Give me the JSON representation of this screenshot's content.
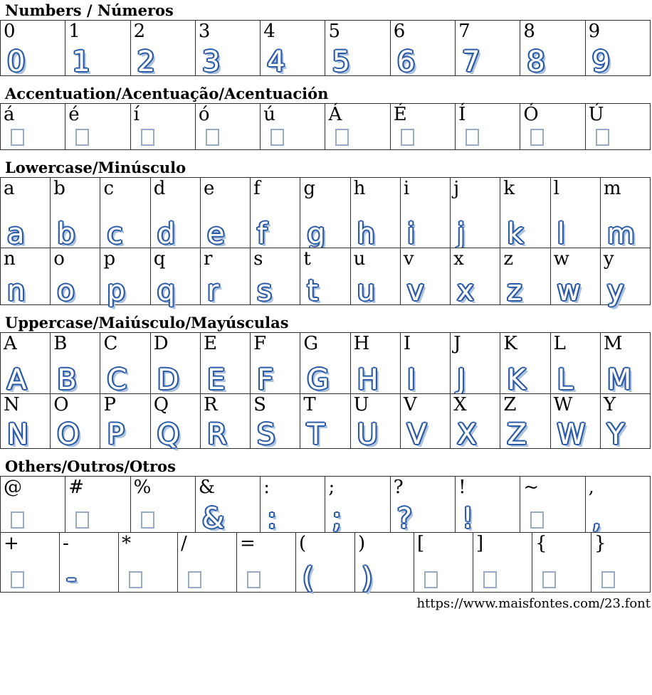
{
  "palette": {
    "glyph_outline_blue": "#2b5ba6",
    "glyph_shade_blue": "#aec3dd",
    "missing_box_border": "#97abc5",
    "grid_border": "#2f2f2f"
  },
  "footer": {
    "url": "https://www.maisfontes.com/23.font"
  },
  "sections": [
    {
      "title": "Numbers / Números",
      "rows": [
        [
          {
            "ch": "0",
            "present": true
          },
          {
            "ch": "1",
            "present": true
          },
          {
            "ch": "2",
            "present": true
          },
          {
            "ch": "3",
            "present": true
          },
          {
            "ch": "4",
            "present": true
          },
          {
            "ch": "5",
            "present": true
          },
          {
            "ch": "6",
            "present": true
          },
          {
            "ch": "7",
            "present": true
          },
          {
            "ch": "8",
            "present": true
          },
          {
            "ch": "9",
            "present": true
          }
        ]
      ]
    },
    {
      "title": "Accentuation/Acentuação/Acentuación",
      "rows": [
        [
          {
            "ch": "á",
            "present": false
          },
          {
            "ch": "é",
            "present": false
          },
          {
            "ch": "í",
            "present": false
          },
          {
            "ch": "ó",
            "present": false
          },
          {
            "ch": "ú",
            "present": false
          },
          {
            "ch": "Á",
            "present": false
          },
          {
            "ch": "É",
            "present": false
          },
          {
            "ch": "Í",
            "present": false
          },
          {
            "ch": "Ó",
            "present": false
          },
          {
            "ch": "Ú",
            "present": false
          }
        ]
      ]
    },
    {
      "title": "Lowercase/Minúsculo",
      "rows": [
        [
          {
            "ch": "a",
            "present": true
          },
          {
            "ch": "b",
            "present": true
          },
          {
            "ch": "c",
            "present": true
          },
          {
            "ch": "d",
            "present": true
          },
          {
            "ch": "e",
            "present": true
          },
          {
            "ch": "f",
            "present": true
          },
          {
            "ch": "g",
            "present": true
          },
          {
            "ch": "h",
            "present": true
          },
          {
            "ch": "i",
            "present": true
          },
          {
            "ch": "j",
            "present": true
          },
          {
            "ch": "k",
            "present": true
          },
          {
            "ch": "l",
            "present": true
          },
          {
            "ch": "m",
            "present": true
          }
        ],
        [
          {
            "ch": "n",
            "present": true
          },
          {
            "ch": "o",
            "present": true
          },
          {
            "ch": "p",
            "present": true
          },
          {
            "ch": "q",
            "present": true
          },
          {
            "ch": "r",
            "present": true
          },
          {
            "ch": "s",
            "present": true
          },
          {
            "ch": "t",
            "present": true
          },
          {
            "ch": "u",
            "present": true
          },
          {
            "ch": "v",
            "present": true
          },
          {
            "ch": "x",
            "present": true
          },
          {
            "ch": "z",
            "present": true
          },
          {
            "ch": "w",
            "present": true
          },
          {
            "ch": "y",
            "present": true
          }
        ]
      ]
    },
    {
      "title": "Uppercase/Maiúsculo/Mayúsculas",
      "rows": [
        [
          {
            "ch": "A",
            "present": true
          },
          {
            "ch": "B",
            "present": true
          },
          {
            "ch": "C",
            "present": true
          },
          {
            "ch": "D",
            "present": true
          },
          {
            "ch": "E",
            "present": true
          },
          {
            "ch": "F",
            "present": true
          },
          {
            "ch": "G",
            "present": true
          },
          {
            "ch": "H",
            "present": true
          },
          {
            "ch": "I",
            "present": true
          },
          {
            "ch": "J",
            "present": true
          },
          {
            "ch": "K",
            "present": true
          },
          {
            "ch": "L",
            "present": true
          },
          {
            "ch": "M",
            "present": true
          }
        ],
        [
          {
            "ch": "N",
            "present": true
          },
          {
            "ch": "O",
            "present": true
          },
          {
            "ch": "P",
            "present": true
          },
          {
            "ch": "Q",
            "present": true
          },
          {
            "ch": "R",
            "present": true
          },
          {
            "ch": "S",
            "present": true
          },
          {
            "ch": "T",
            "present": true
          },
          {
            "ch": "U",
            "present": true
          },
          {
            "ch": "V",
            "present": true
          },
          {
            "ch": "X",
            "present": true
          },
          {
            "ch": "Z",
            "present": true
          },
          {
            "ch": "W",
            "present": true
          },
          {
            "ch": "Y",
            "present": true
          }
        ]
      ]
    },
    {
      "title": "Others/Outros/Otros",
      "rows": [
        [
          {
            "ch": "@",
            "present": false
          },
          {
            "ch": "#",
            "present": false
          },
          {
            "ch": "%",
            "present": false
          },
          {
            "ch": "&",
            "present": true
          },
          {
            "ch": ":",
            "present": true
          },
          {
            "ch": ";",
            "present": true
          },
          {
            "ch": "?",
            "present": true
          },
          {
            "ch": "!",
            "present": true
          },
          {
            "ch": "~",
            "present": false
          },
          {
            "ch": ",",
            "present": true
          }
        ],
        [
          {
            "ch": "+",
            "present": false
          },
          {
            "ch": "-",
            "present": true
          },
          {
            "ch": "*",
            "present": false
          },
          {
            "ch": "/",
            "present": false
          },
          {
            "ch": "=",
            "present": false
          },
          {
            "ch": "(",
            "present": true
          },
          {
            "ch": ")",
            "present": true
          },
          {
            "ch": "[",
            "present": false
          },
          {
            "ch": "]",
            "present": false
          },
          {
            "ch": "{",
            "present": false
          },
          {
            "ch": "}",
            "present": false
          }
        ]
      ]
    }
  ]
}
